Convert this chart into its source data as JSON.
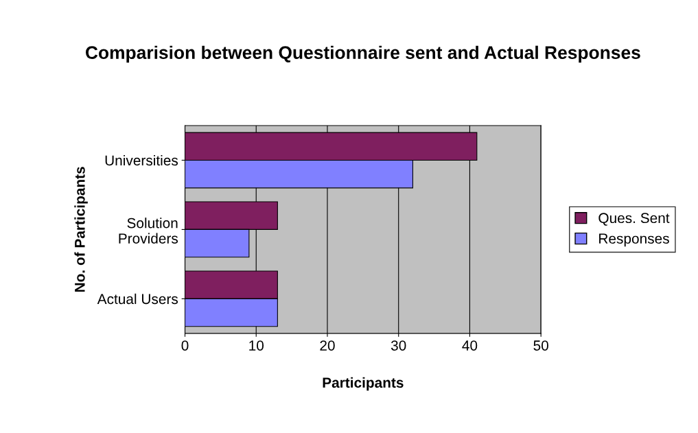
{
  "chart_data": {
    "type": "bar",
    "orientation": "horizontal",
    "title": "Comparision between Questionnaire sent and Actual Responses",
    "xlabel": "Participants",
    "ylabel": "No. of Participants",
    "categories": [
      "Universities",
      "Solution\nProviders",
      "Actual Users"
    ],
    "series": [
      {
        "name": "Ques. Sent",
        "color": "#7f1f5f",
        "values": [
          41,
          13,
          13
        ]
      },
      {
        "name": "Responses",
        "color": "#8080ff",
        "values": [
          32,
          9,
          13
        ]
      }
    ],
    "xlim": [
      0,
      50
    ],
    "xticks": [
      0,
      10,
      20,
      30,
      40,
      50
    ],
    "grid": "x",
    "legend": "right"
  }
}
